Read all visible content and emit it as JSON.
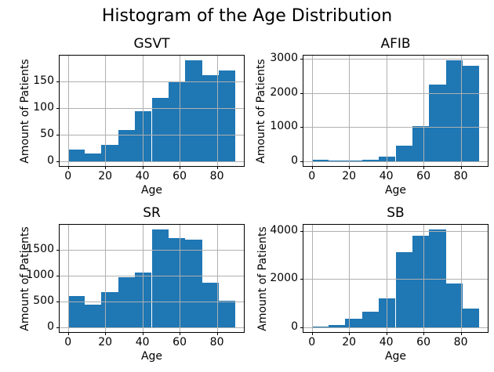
{
  "figure": {
    "suptitle": "Histogram of the Age Distribution"
  },
  "colors": {
    "bar": "#1f77b4",
    "grid": "#b0b0b0",
    "spine": "#000000",
    "background": "#ffffff"
  },
  "chart_data": [
    {
      "type": "bar",
      "title": "GSVT",
      "xlabel": "Age",
      "ylabel": "Amount of Patients",
      "bin_edges": [
        0,
        9,
        18,
        27,
        36,
        45,
        54,
        63,
        72,
        81,
        90
      ],
      "values": [
        21,
        14,
        30,
        58,
        94,
        120,
        150,
        190,
        162,
        171
      ],
      "xticks": [
        0,
        20,
        40,
        60,
        80
      ],
      "yticks": [
        0,
        50,
        100,
        150
      ],
      "xlim": [
        -4.5,
        94.5
      ],
      "ylim": [
        -9.5,
        199.5
      ],
      "grid": true,
      "legend": false
    },
    {
      "type": "bar",
      "title": "AFIB",
      "xlabel": "Age",
      "ylabel": "Amount of Patients",
      "bin_edges": [
        0,
        9,
        18,
        27,
        36,
        45,
        54,
        63,
        72,
        81,
        90
      ],
      "values": [
        30,
        8,
        18,
        45,
        140,
        460,
        1030,
        2250,
        2950,
        2800
      ],
      "xticks": [
        0,
        20,
        40,
        60,
        80
      ],
      "yticks": [
        0,
        1000,
        2000,
        3000
      ],
      "xlim": [
        -4.5,
        94.5
      ],
      "ylim": [
        -147.5,
        3097.5
      ],
      "grid": true,
      "legend": false
    },
    {
      "type": "bar",
      "title": "SR",
      "xlabel": "Age",
      "ylabel": "Amount of Patients",
      "bin_edges": [
        0,
        9,
        18,
        27,
        36,
        45,
        54,
        63,
        72,
        81,
        90
      ],
      "values": [
        600,
        440,
        690,
        970,
        1060,
        1900,
        1740,
        1700,
        870,
        510
      ],
      "xticks": [
        0,
        20,
        40,
        60,
        80
      ],
      "yticks": [
        0,
        500,
        1000,
        1500
      ],
      "xlim": [
        -4.5,
        94.5
      ],
      "ylim": [
        -95,
        1995
      ],
      "grid": true,
      "legend": false
    },
    {
      "type": "bar",
      "title": "SB",
      "xlabel": "Age",
      "ylabel": "Amount of Patients",
      "bin_edges": [
        0,
        9,
        18,
        27,
        36,
        45,
        54,
        63,
        72,
        81,
        90
      ],
      "values": [
        30,
        75,
        340,
        660,
        1200,
        3130,
        3810,
        4060,
        1820,
        760
      ],
      "xticks": [
        0,
        20,
        40,
        60,
        80
      ],
      "yticks": [
        0,
        2000,
        4000
      ],
      "xlim": [
        -4.5,
        94.5
      ],
      "ylim": [
        -203,
        4263
      ],
      "grid": true,
      "legend": false
    }
  ]
}
